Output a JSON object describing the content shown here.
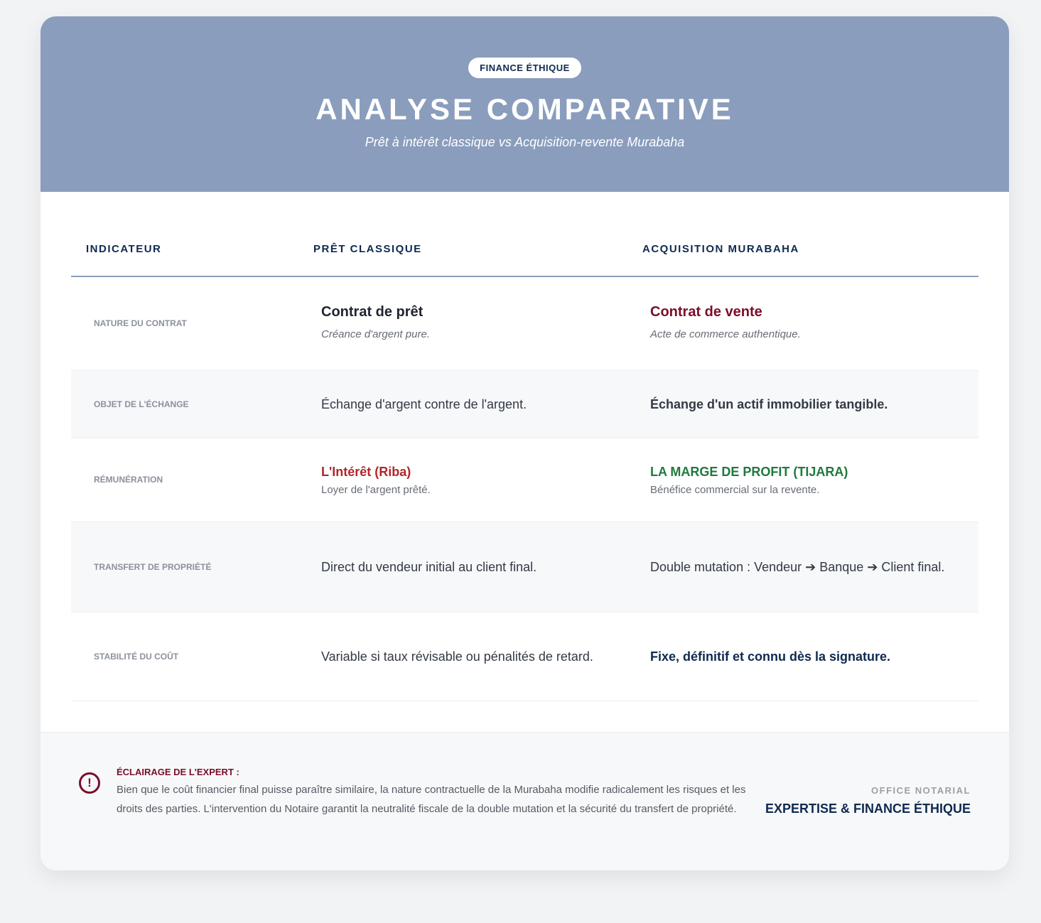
{
  "header": {
    "badge": "FINANCE ÉTHIQUE",
    "title": "ANALYSE COMPARATIVE",
    "subtitle": "Prêt à intérêt classique vs Acquisition-revente Murabaha"
  },
  "table": {
    "headers": [
      "INDICATEUR",
      "PRÊT CLASSIQUE",
      "ACQUISITION MURABAHA"
    ],
    "rows": [
      {
        "indicator": "NATURE DU CONTRAT",
        "classic": {
          "title": "Contrat de prêt",
          "note": "Créance d'argent pure."
        },
        "murabaha": {
          "title": "Contrat de vente",
          "note": "Acte de commerce authentique."
        }
      },
      {
        "indicator": "OBJET DE L'ÉCHANGE",
        "classic": {
          "text": "Échange d'argent contre de l'argent."
        },
        "murabaha": {
          "text": "Échange d'un actif immobilier tangible."
        }
      },
      {
        "indicator": "RÉMUNÉRATION",
        "classic": {
          "title": "L'Intérêt (Riba)",
          "note": "Loyer de l'argent prêté."
        },
        "murabaha": {
          "title": "LA MARGE DE PROFIT (TIJARA)",
          "note": "Bénéfice commercial sur la revente."
        }
      },
      {
        "indicator": "TRANSFERT DE PROPRIÉTÉ",
        "classic": {
          "text": "Direct du vendeur initial au client final."
        },
        "murabaha": {
          "text": "Double mutation : Vendeur ➔ Banque ➔ Client final."
        }
      },
      {
        "indicator": "STABILITÉ DU COÛT",
        "classic": {
          "text": "Variable si taux révisable ou pénalités de retard."
        },
        "murabaha": {
          "text": "Fixe, définitif et connu dès la signature."
        }
      }
    ]
  },
  "footer": {
    "icon": "exclamation-circle-icon",
    "title": "ÉCLAIRAGE DE L'EXPERT :",
    "body": "Bien que le coût financier final puisse paraître similaire, la nature contractuelle de la Murabaha modifie radicalement les risques et les droits des parties. L'intervention du Notaire garantit la neutralité fiscale de la double mutation et la sécurité du transfert de propriété.",
    "office": "OFFICE NOTARIAL",
    "signature": "EXPERTISE & FINANCE ÉTHIQUE"
  },
  "colors": {
    "header_bg": "#8a9dbd",
    "navy": "#0f2a4f",
    "burgundy": "#7b0d2a",
    "red": "#b3262b",
    "green": "#1e7a3c"
  }
}
